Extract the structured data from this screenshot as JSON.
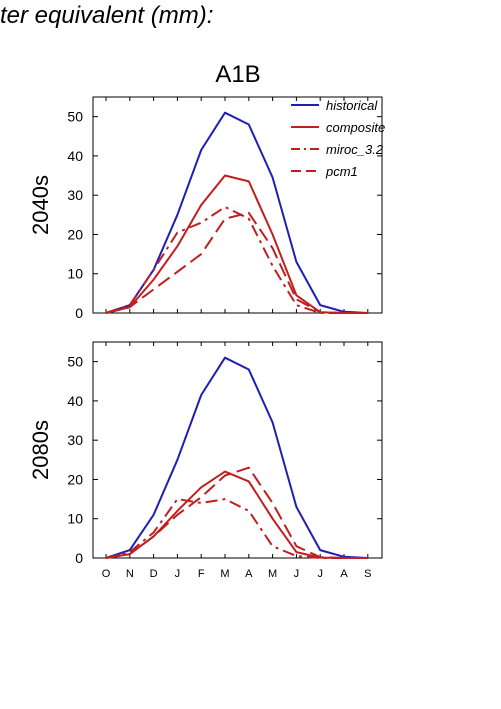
{
  "page": {
    "title": "ter equivalent (mm):"
  },
  "chart_data": {
    "type": "line",
    "title": "A1B",
    "categories": [
      "O",
      "N",
      "D",
      "J",
      "F",
      "M",
      "A",
      "M",
      "J",
      "J",
      "A",
      "S"
    ],
    "ylim": [
      0,
      55
    ],
    "yticks": [
      0,
      10,
      20,
      30,
      40,
      50
    ],
    "grid": false,
    "legend_position": "top-right",
    "colors": {
      "historical": "#1f1fb4",
      "projection": "#bf1f1f"
    },
    "legend": [
      {
        "name": "historical",
        "style": "solid",
        "color": "#1f1fb4"
      },
      {
        "name": "composite",
        "style": "solid",
        "color": "#bf1f1f"
      },
      {
        "name": "miroc_3.2",
        "style": "dashdot",
        "color": "#bf1f1f"
      },
      {
        "name": "pcm1",
        "style": "dashed",
        "color": "#bf1f1f"
      }
    ],
    "panels": [
      {
        "ylabel": "2040s",
        "series": [
          {
            "name": "historical",
            "values": [
              0,
              2,
              11,
              25,
              41.5,
              51,
              48,
              34.5,
              13,
              2,
              0.3,
              0
            ]
          },
          {
            "name": "composite",
            "values": [
              0,
              1.5,
              8.5,
              17,
              27.5,
              35,
              33.5,
              20,
              4.5,
              0.2,
              0,
              0
            ]
          },
          {
            "name": "miroc_3.2",
            "values": [
              0,
              2,
              11,
              20.5,
              23,
              27,
              24,
              12,
              2,
              0,
              0,
              0
            ]
          },
          {
            "name": "pcm1",
            "values": [
              0,
              1.5,
              6,
              10.5,
              15,
              24,
              25.5,
              16.5,
              3.5,
              0.2,
              0,
              0
            ]
          }
        ]
      },
      {
        "ylabel": "2080s",
        "series": [
          {
            "name": "historical",
            "values": [
              0,
              2,
              11,
              25,
              41.5,
              51,
              48,
              34.5,
              13,
              2,
              0.3,
              0
            ]
          },
          {
            "name": "composite",
            "values": [
              0,
              1,
              5.5,
              12,
              18,
              22,
              19.5,
              10,
              1.5,
              0.1,
              0,
              0
            ]
          },
          {
            "name": "miroc_3.2",
            "values": [
              0,
              1.5,
              6.5,
              15,
              14,
              15,
              12,
              3,
              0.5,
              0,
              0,
              0
            ]
          },
          {
            "name": "pcm1",
            "values": [
              0,
              1,
              5.5,
              11,
              15.5,
              21,
              23,
              14,
              3,
              0.2,
              0,
              0
            ]
          }
        ]
      }
    ]
  }
}
